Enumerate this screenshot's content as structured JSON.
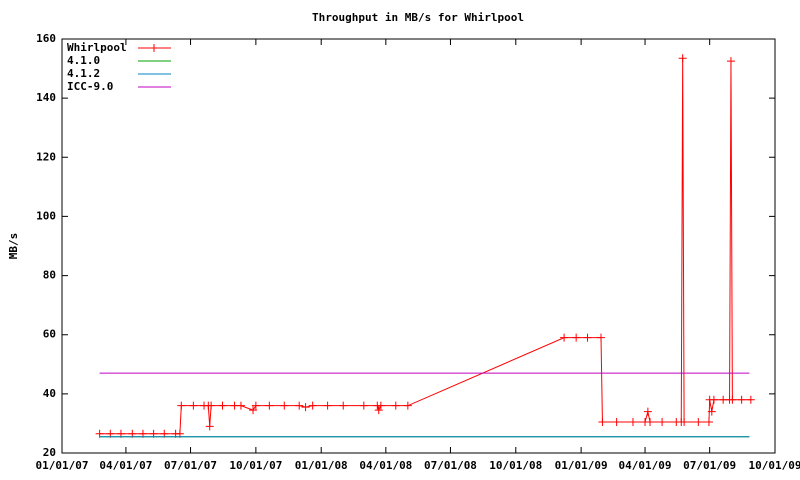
{
  "chart_data": {
    "type": "line",
    "title": "Throughput in MB/s for Whirlpool",
    "ylabel": "MB/s",
    "xlim": [
      "01/01/07",
      "10/01/09"
    ],
    "xticks": [
      "01/01/07",
      "04/01/07",
      "07/01/07",
      "10/01/07",
      "01/01/08",
      "04/01/08",
      "07/01/08",
      "10/01/08",
      "01/01/09",
      "04/01/09",
      "07/01/09",
      "10/01/09"
    ],
    "ylim": [
      20,
      160
    ],
    "yticks": [
      20,
      40,
      60,
      80,
      100,
      120,
      140,
      160
    ],
    "legend": "upper left",
    "series": [
      {
        "name": "Whirlpool",
        "color": "#ff0000",
        "marker": "+",
        "x": [
          "02/23/07",
          "03/10/07",
          "03/25/07",
          "04/10/07",
          "04/25/07",
          "05/10/07",
          "05/25/07",
          "06/10/07",
          "06/16/07",
          "06/18/07",
          "07/05/07",
          "07/20/07",
          "07/26/07",
          "07/28/07",
          "07/30/07",
          "08/15/07",
          "09/01/07",
          "09/10/07",
          "09/27/07",
          "10/01/07",
          "10/20/07",
          "11/10/07",
          "12/01/07",
          "12/10/07",
          "12/20/07",
          "01/10/08",
          "02/01/08",
          "03/01/08",
          "03/20/08",
          "03/22/08",
          "03/25/08",
          "04/15/08",
          "05/02/08",
          "12/08/08",
          "12/25/08",
          "01/10/09",
          "01/29/09",
          "01/31/09",
          "02/20/09",
          "03/15/09",
          "04/01/09",
          "04/05/09",
          "04/08/09",
          "04/25/09",
          "05/15/09",
          "05/22/09",
          "05/24/09",
          "05/26/09",
          "06/15/09",
          "06/30/09",
          "07/01/09",
          "07/04/09",
          "07/07/09",
          "07/20/09",
          "07/29/09",
          "07/31/09",
          "08/02/09",
          "08/15/09",
          "08/28/09"
        ],
        "values": [
          26.5,
          26.5,
          26.5,
          26.5,
          26.5,
          26.5,
          26.5,
          26.5,
          26.5,
          36,
          36,
          36,
          36,
          29,
          36,
          36,
          36,
          36,
          34.5,
          36,
          36,
          36,
          36,
          35.5,
          36,
          36,
          36,
          36,
          36,
          34.5,
          36,
          36,
          36,
          59,
          59,
          59,
          59,
          30.5,
          30.5,
          30.5,
          30.5,
          34,
          30.5,
          30.5,
          30.5,
          30.5,
          153.5,
          30.5,
          30.5,
          30.5,
          38,
          34,
          38,
          38,
          38,
          152.5,
          38,
          38,
          38
        ]
      },
      {
        "name": "4.1.0",
        "color": "#00a000",
        "x": [
          "02/23/07",
          "08/26/09"
        ],
        "values": [
          25.5,
          25.5
        ]
      },
      {
        "name": "4.1.2",
        "color": "#0080c0",
        "x": [
          "02/23/07",
          "08/26/09"
        ],
        "values": [
          25.5,
          25.5
        ]
      },
      {
        "name": "ICC-9.0",
        "color": "#c000c0",
        "x": [
          "02/23/07",
          "08/26/09"
        ],
        "values": [
          47,
          47
        ]
      }
    ]
  }
}
